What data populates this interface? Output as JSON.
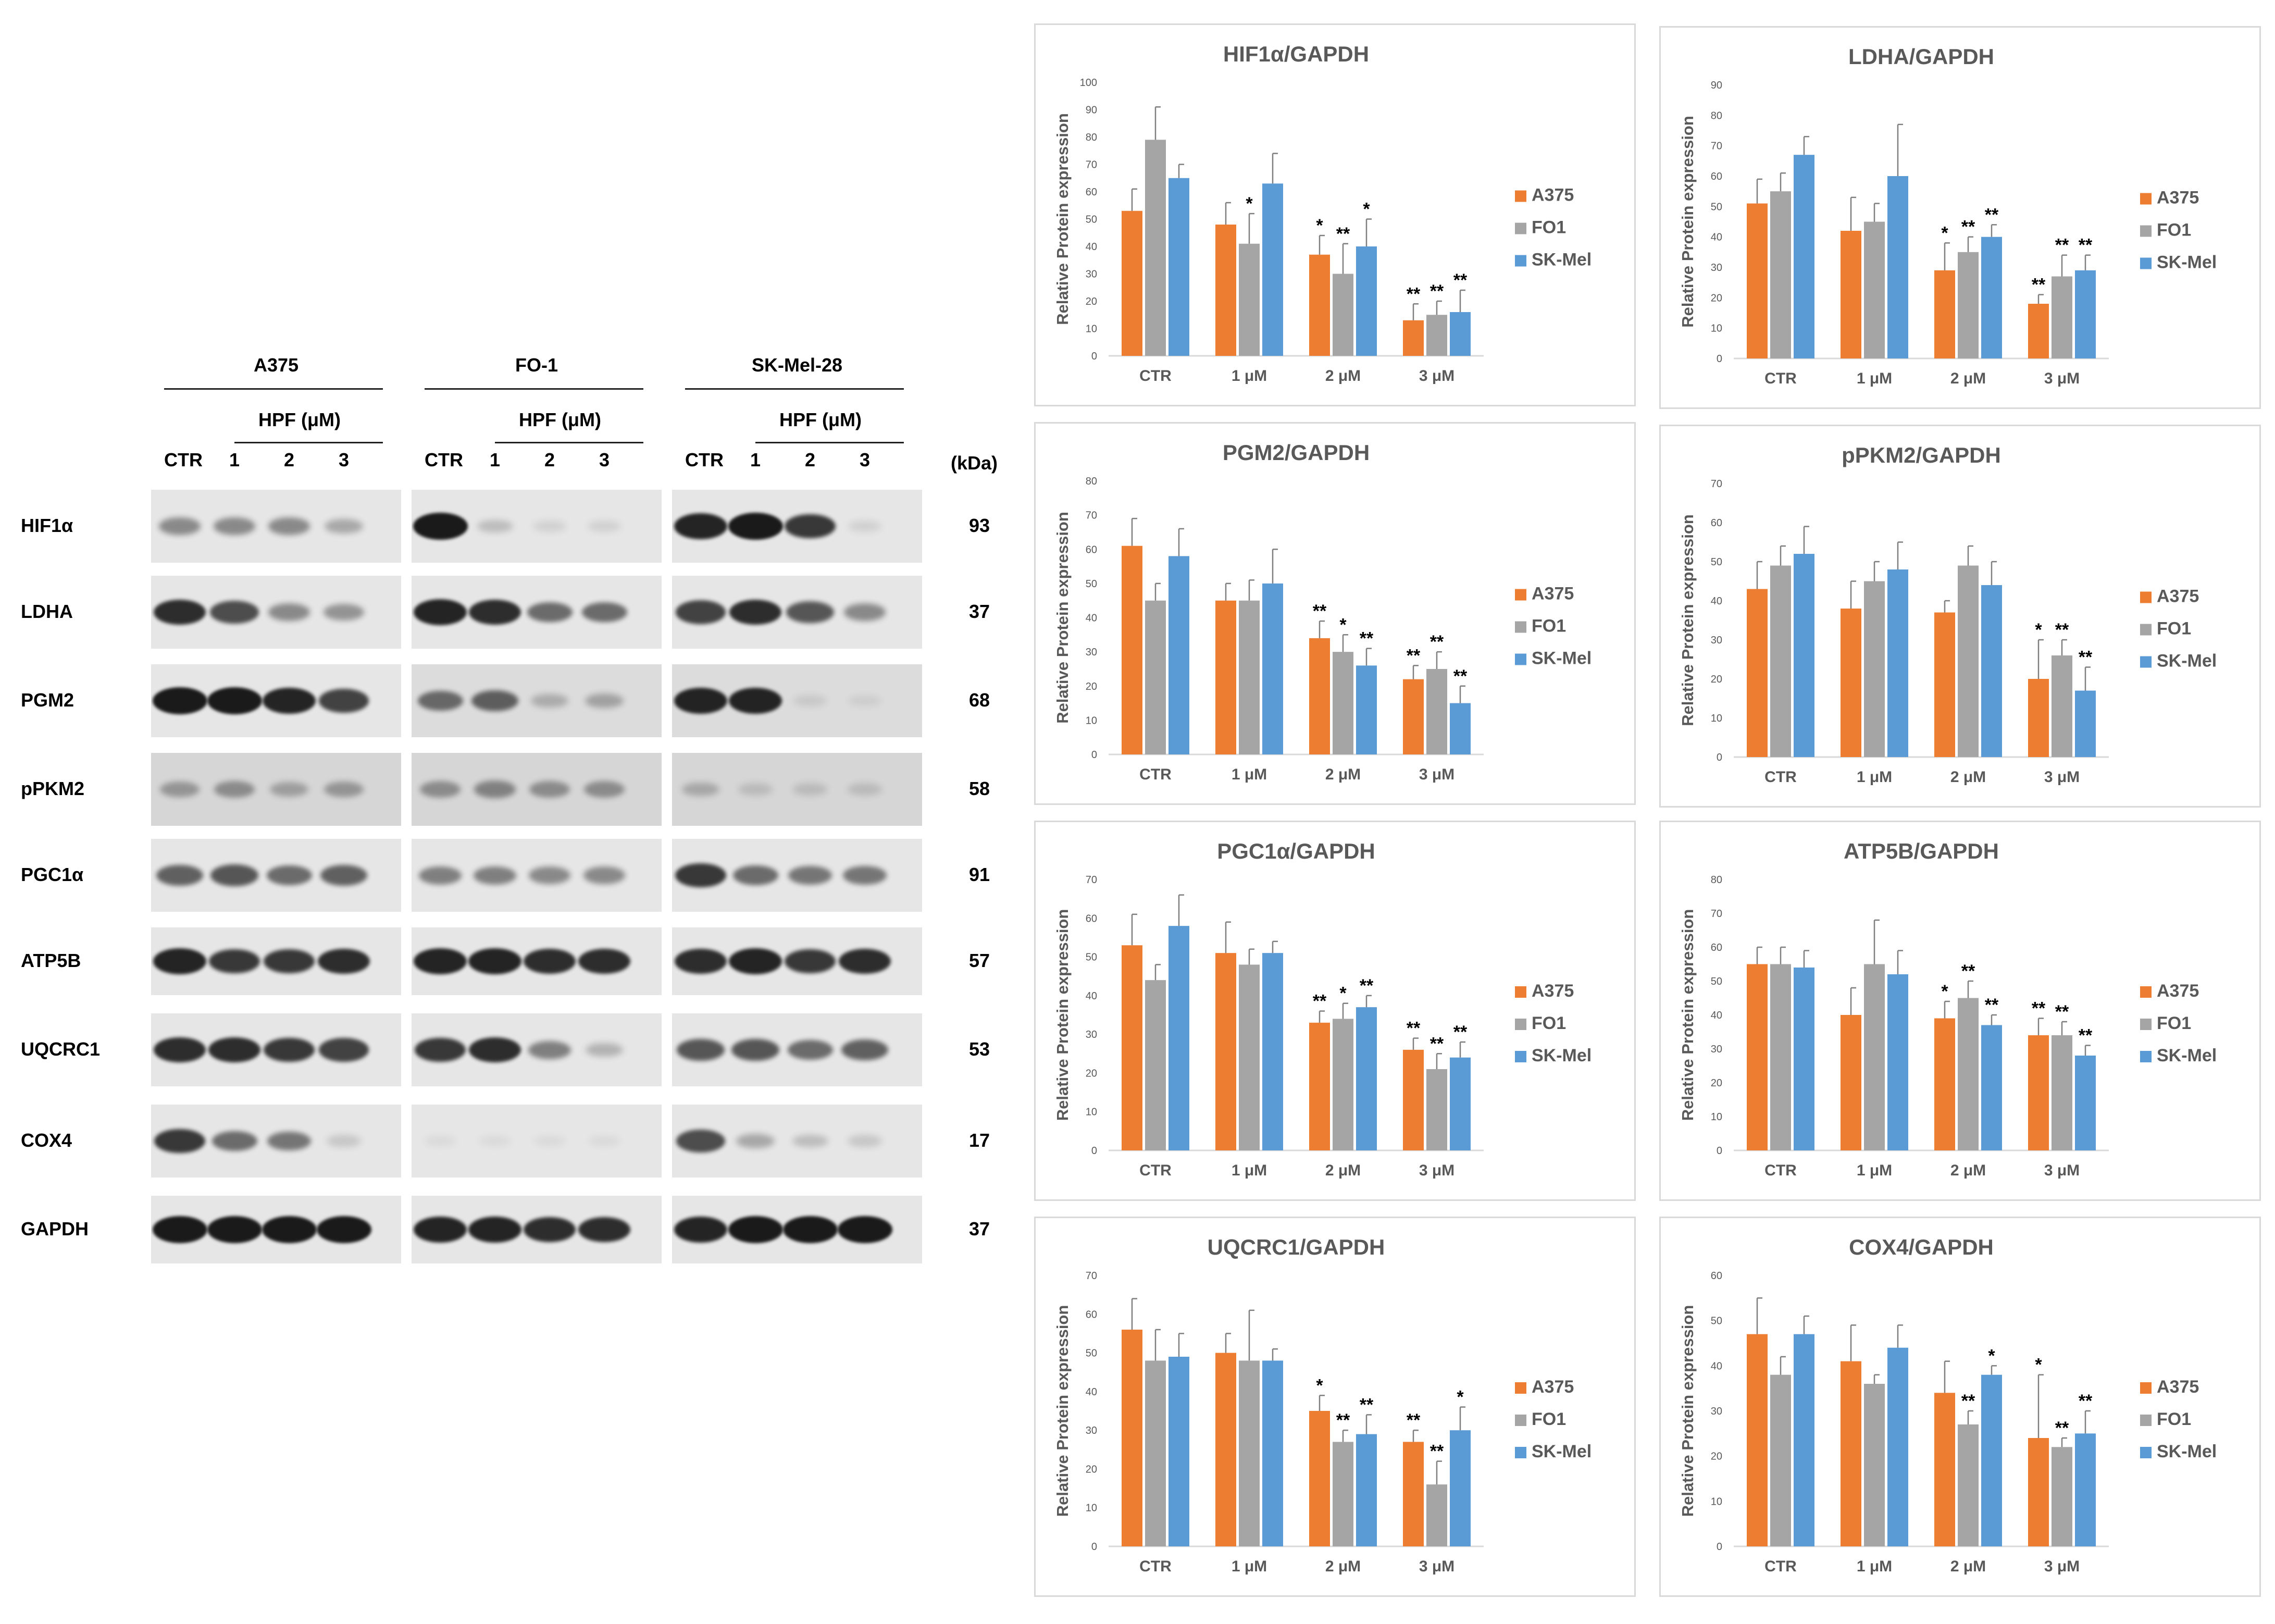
{
  "colors": {
    "A375": "#ED7D31",
    "FO1": "#A5A5A5",
    "SK-Mel": "#5B9BD5",
    "gridline": "#d9d9d9",
    "axis_text": "#595959",
    "band": "#1a1a1a"
  },
  "blot": {
    "cell_lines": [
      "A375",
      "FO-1",
      "SK-Mel-28"
    ],
    "treatment_label": "HPF (μM)",
    "lane_labels": [
      "CTR",
      "1",
      "2",
      "3"
    ],
    "kda_header": "(kDa)",
    "proteins": [
      {
        "name": "HIF1α",
        "kda": "93"
      },
      {
        "name": "LDHA",
        "kda": "37"
      },
      {
        "name": "PGM2",
        "kda": "68"
      },
      {
        "name": "pPKM2",
        "kda": "58"
      },
      {
        "name": "PGC1α",
        "kda": "91"
      },
      {
        "name": "ATP5B",
        "kda": "57"
      },
      {
        "name": "UQCRC1",
        "kda": "53"
      },
      {
        "name": "COX4",
        "kda": "17"
      },
      {
        "name": "GAPDH",
        "kda": "37"
      }
    ],
    "band_intensity": [
      [
        [
          0.45,
          0.45,
          0.45,
          0.3
        ],
        [
          1.0,
          0.2,
          0.1,
          0.1
        ],
        [
          0.95,
          1.0,
          0.85,
          0.1
        ]
      ],
      [
        [
          0.9,
          0.75,
          0.45,
          0.4
        ],
        [
          0.95,
          0.9,
          0.6,
          0.6
        ],
        [
          0.8,
          0.9,
          0.7,
          0.45
        ]
      ],
      [
        [
          1.0,
          1.0,
          0.95,
          0.8
        ],
        [
          0.6,
          0.65,
          0.25,
          0.3
        ],
        [
          0.95,
          0.95,
          0.1,
          0.08
        ]
      ],
      [
        [
          0.35,
          0.4,
          0.3,
          0.35
        ],
        [
          0.4,
          0.45,
          0.4,
          0.4
        ],
        [
          0.25,
          0.15,
          0.15,
          0.15
        ]
      ],
      [
        [
          0.65,
          0.7,
          0.6,
          0.65
        ],
        [
          0.5,
          0.5,
          0.45,
          0.45
        ],
        [
          0.85,
          0.6,
          0.55,
          0.55
        ]
      ],
      [
        [
          0.95,
          0.85,
          0.85,
          0.9
        ],
        [
          0.95,
          0.95,
          0.9,
          0.9
        ],
        [
          0.9,
          0.95,
          0.85,
          0.9
        ]
      ],
      [
        [
          0.9,
          0.9,
          0.85,
          0.8
        ],
        [
          0.85,
          0.9,
          0.5,
          0.25
        ],
        [
          0.7,
          0.7,
          0.6,
          0.65
        ]
      ],
      [
        [
          0.85,
          0.6,
          0.55,
          0.15
        ],
        [
          0.05,
          0.05,
          0.05,
          0.05
        ],
        [
          0.75,
          0.3,
          0.2,
          0.15
        ]
      ],
      [
        [
          1.0,
          1.0,
          1.0,
          1.0
        ],
        [
          0.95,
          0.95,
          0.9,
          0.9
        ],
        [
          0.95,
          1.0,
          1.0,
          1.0
        ]
      ]
    ]
  },
  "chart_data": [
    {
      "type": "bar",
      "title": "HIF1α/GAPDH",
      "ylabel": "Relative Protein expression",
      "ylim": [
        0,
        100
      ],
      "yticks": [
        0,
        10,
        20,
        30,
        40,
        50,
        60,
        70,
        80,
        90,
        100
      ],
      "categories": [
        "CTR",
        "1 μM",
        "2 μM",
        "3 μM"
      ],
      "series": [
        {
          "name": "A375",
          "values": [
            53,
            48,
            37,
            13
          ],
          "errors": [
            8,
            8,
            7,
            6
          ],
          "stars": [
            "",
            "",
            "*",
            "**"
          ]
        },
        {
          "name": "FO1",
          "values": [
            79,
            41,
            30,
            15
          ],
          "errors": [
            12,
            11,
            11,
            5
          ],
          "stars": [
            "",
            "*",
            "**",
            "**"
          ]
        },
        {
          "name": "SK-Mel",
          "values": [
            65,
            63,
            40,
            16
          ],
          "errors": [
            5,
            11,
            10,
            8
          ],
          "stars": [
            "",
            "",
            "*",
            "**"
          ]
        }
      ],
      "legend": "right"
    },
    {
      "type": "bar",
      "title": "LDHA/GAPDH",
      "ylabel": "Relative Protein expression",
      "ylim": [
        0,
        90
      ],
      "yticks": [
        0,
        10,
        20,
        30,
        40,
        50,
        60,
        70,
        80,
        90
      ],
      "categories": [
        "CTR",
        "1 μM",
        "2 μM",
        "3 μM"
      ],
      "series": [
        {
          "name": "A375",
          "values": [
            51,
            42,
            29,
            18
          ],
          "errors": [
            8,
            11,
            9,
            3
          ],
          "stars": [
            "",
            "",
            "*",
            "**"
          ]
        },
        {
          "name": "FO1",
          "values": [
            55,
            45,
            35,
            27
          ],
          "errors": [
            6,
            6,
            5,
            7
          ],
          "stars": [
            "",
            "",
            "**",
            "**"
          ]
        },
        {
          "name": "SK-Mel",
          "values": [
            67,
            60,
            40,
            29
          ],
          "errors": [
            6,
            17,
            4,
            5
          ],
          "stars": [
            "",
            "",
            "**",
            "**"
          ]
        }
      ],
      "legend": "right"
    },
    {
      "type": "bar",
      "title": "PGM2/GAPDH",
      "ylabel": "Relative Protein expression",
      "ylim": [
        0,
        80
      ],
      "yticks": [
        0,
        10,
        20,
        30,
        40,
        50,
        60,
        70,
        80
      ],
      "categories": [
        "CTR",
        "1 μM",
        "2 μM",
        "3 μM"
      ],
      "series": [
        {
          "name": "A375",
          "values": [
            61,
            45,
            34,
            22
          ],
          "errors": [
            8,
            5,
            5,
            4
          ],
          "stars": [
            "",
            "",
            "**",
            "**"
          ]
        },
        {
          "name": "FO1",
          "values": [
            45,
            45,
            30,
            25
          ],
          "errors": [
            5,
            6,
            5,
            5
          ],
          "stars": [
            "",
            "",
            "*",
            "**"
          ]
        },
        {
          "name": "SK-Mel",
          "values": [
            58,
            50,
            26,
            15
          ],
          "errors": [
            8,
            10,
            5,
            5
          ],
          "stars": [
            "",
            "",
            "**",
            "**"
          ]
        }
      ],
      "legend": "right"
    },
    {
      "type": "bar",
      "title": "pPKM2/GAPDH",
      "ylabel": "Relative Protein expression",
      "ylim": [
        0,
        70
      ],
      "yticks": [
        0,
        10,
        20,
        30,
        40,
        50,
        60,
        70
      ],
      "categories": [
        "CTR",
        "1 μM",
        "2 μM",
        "3 μM"
      ],
      "series": [
        {
          "name": "A375",
          "values": [
            43,
            38,
            37,
            20
          ],
          "errors": [
            7,
            7,
            3,
            10
          ],
          "stars": [
            "",
            "",
            "",
            "*"
          ]
        },
        {
          "name": "FO1",
          "values": [
            49,
            45,
            49,
            26
          ],
          "errors": [
            5,
            5,
            5,
            4
          ],
          "stars": [
            "",
            "",
            "",
            "**"
          ]
        },
        {
          "name": "SK-Mel",
          "values": [
            52,
            48,
            44,
            17
          ],
          "errors": [
            7,
            7,
            6,
            6
          ],
          "stars": [
            "",
            "",
            "",
            "**"
          ]
        }
      ],
      "legend": "right"
    },
    {
      "type": "bar",
      "title": "PGC1α/GAPDH",
      "ylabel": "Relative Protein expression",
      "ylim": [
        0,
        70
      ],
      "yticks": [
        0,
        10,
        20,
        30,
        40,
        50,
        60,
        70
      ],
      "categories": [
        "CTR",
        "1 μM",
        "2 μM",
        "3 μM"
      ],
      "series": [
        {
          "name": "A375",
          "values": [
            53,
            51,
            33,
            26
          ],
          "errors": [
            8,
            8,
            3,
            3
          ],
          "stars": [
            "",
            "",
            "**",
            "**"
          ]
        },
        {
          "name": "FO1",
          "values": [
            44,
            48,
            34,
            21
          ],
          "errors": [
            4,
            4,
            4,
            4
          ],
          "stars": [
            "",
            "",
            "*",
            "**"
          ]
        },
        {
          "name": "SK-Mel",
          "values": [
            58,
            51,
            37,
            24
          ],
          "errors": [
            8,
            3,
            3,
            4
          ],
          "stars": [
            "",
            "",
            "**",
            "**"
          ]
        }
      ],
      "legend": "right"
    },
    {
      "type": "bar",
      "title": "ATP5B/GAPDH",
      "ylabel": "Relative Protein expression",
      "ylim": [
        0,
        80
      ],
      "yticks": [
        0,
        10,
        20,
        30,
        40,
        50,
        60,
        70,
        80
      ],
      "categories": [
        "CTR",
        "1 μM",
        "2 μM",
        "3 μM"
      ],
      "series": [
        {
          "name": "A375",
          "values": [
            55,
            40,
            39,
            34
          ],
          "errors": [
            5,
            8,
            5,
            5
          ],
          "stars": [
            "",
            "",
            "*",
            "**"
          ]
        },
        {
          "name": "FO1",
          "values": [
            55,
            55,
            45,
            34
          ],
          "errors": [
            5,
            13,
            5,
            4
          ],
          "stars": [
            "",
            "",
            "**",
            "**"
          ]
        },
        {
          "name": "SK-Mel",
          "values": [
            54,
            52,
            37,
            28
          ],
          "errors": [
            5,
            7,
            3,
            3
          ],
          "stars": [
            "",
            "",
            "**",
            "**"
          ]
        }
      ],
      "legend": "right"
    },
    {
      "type": "bar",
      "title": "UQCRC1/GAPDH",
      "ylabel": "Relative Protein expression",
      "ylim": [
        0,
        70
      ],
      "yticks": [
        0,
        10,
        20,
        30,
        40,
        50,
        60,
        70
      ],
      "categories": [
        "CTR",
        "1 μM",
        "2 μM",
        "3 μM"
      ],
      "series": [
        {
          "name": "A375",
          "values": [
            56,
            50,
            35,
            27
          ],
          "errors": [
            8,
            5,
            4,
            3
          ],
          "stars": [
            "",
            "",
            "*",
            "**"
          ]
        },
        {
          "name": "FO1",
          "values": [
            48,
            48,
            27,
            16
          ],
          "errors": [
            8,
            13,
            3,
            6
          ],
          "stars": [
            "",
            "",
            "**",
            "**"
          ]
        },
        {
          "name": "SK-Mel",
          "values": [
            49,
            48,
            29,
            30
          ],
          "errors": [
            6,
            3,
            5,
            6
          ],
          "stars": [
            "",
            "",
            "**",
            "*"
          ]
        }
      ],
      "legend": "right"
    },
    {
      "type": "bar",
      "title": "COX4/GAPDH",
      "ylabel": "Relative Protein expression",
      "ylim": [
        0,
        60
      ],
      "yticks": [
        0,
        10,
        20,
        30,
        40,
        50,
        60
      ],
      "categories": [
        "CTR",
        "1 μM",
        "2 μM",
        "3 μM"
      ],
      "series": [
        {
          "name": "A375",
          "values": [
            47,
            41,
            34,
            24
          ],
          "errors": [
            8,
            8,
            7,
            14
          ],
          "stars": [
            "",
            "",
            "",
            "*"
          ]
        },
        {
          "name": "FO1",
          "values": [
            38,
            36,
            27,
            22
          ],
          "errors": [
            4,
            2,
            3,
            2
          ],
          "stars": [
            "",
            "",
            "**",
            "**"
          ]
        },
        {
          "name": "SK-Mel",
          "values": [
            47,
            44,
            38,
            25
          ],
          "errors": [
            4,
            5,
            2,
            5
          ],
          "stars": [
            "",
            "",
            "*",
            "**"
          ]
        }
      ],
      "legend": "right"
    }
  ]
}
